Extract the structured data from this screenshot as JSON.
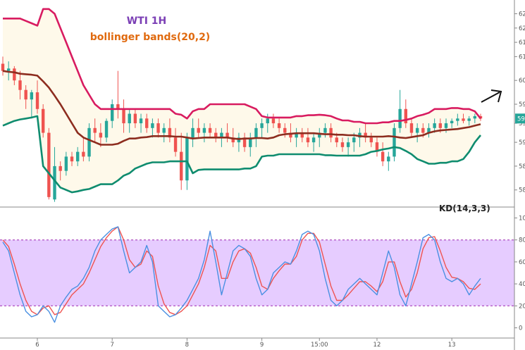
{
  "chart_data": [
    {
      "type": "candlestick",
      "title": "WTI 1H",
      "subtitle": "bollinger bands(20,2)",
      "price_ticks": [
        "62",
        "62",
        "61",
        "61",
        "60",
        "59",
        "59",
        "59",
        "58",
        "58"
      ],
      "price_tick_values": [
        62.1,
        61.8,
        61.5,
        61.2,
        60.7,
        60.2,
        59.8,
        59.4,
        58.9,
        58.4
      ],
      "price_label": "59",
      "ylim": [
        58.1,
        62.3
      ],
      "x_ticks": [
        "6",
        "7",
        "8",
        "9",
        "15:00",
        "12",
        "13"
      ],
      "x_tick_positions": [
        6,
        19,
        32,
        45,
        55,
        65,
        78
      ],
      "x_count": 84,
      "colors": {
        "up": "#26a69a",
        "down": "#ef5350",
        "upper_band": "#d81b60",
        "middle_band": "#8d2d1f",
        "lower_band": "#0f8c6f",
        "band_fill": "#fef9ea",
        "title1": "#7b3fb5",
        "title2": "#e06a0f"
      },
      "arrow": "up-right",
      "upper_band": [
        62.0,
        62.0,
        62.0,
        62.0,
        61.95,
        61.9,
        61.85,
        62.2,
        62.2,
        62.1,
        61.8,
        61.5,
        61.2,
        60.9,
        60.6,
        60.4,
        60.2,
        60.1,
        60.1,
        60.1,
        60.1,
        60.1,
        60.1,
        60.1,
        60.1,
        60.1,
        60.1,
        60.1,
        60.1,
        60.1,
        60.0,
        59.98,
        59.9,
        60.05,
        60.1,
        60.1,
        60.2,
        60.2,
        60.2,
        60.2,
        60.2,
        60.2,
        60.2,
        60.15,
        60.1,
        59.95,
        59.92,
        59.92,
        59.92,
        59.92,
        59.92,
        59.95,
        59.95,
        59.97,
        59.97,
        59.98,
        59.97,
        59.95,
        59.9,
        59.86,
        59.86,
        59.83,
        59.83,
        59.8,
        59.8,
        59.8,
        59.82,
        59.82,
        59.85,
        59.85,
        59.87,
        59.9,
        59.95,
        59.98,
        60.02,
        60.1,
        60.1,
        60.1,
        60.12,
        60.12,
        60.1,
        60.1,
        60.05,
        59.9
      ],
      "middle_band": [
        60.9,
        60.88,
        60.87,
        60.84,
        60.83,
        60.82,
        60.8,
        60.68,
        60.55,
        60.38,
        60.2,
        60.0,
        59.8,
        59.6,
        59.5,
        59.45,
        59.4,
        59.35,
        59.35,
        59.35,
        59.37,
        59.43,
        59.48,
        59.48,
        59.5,
        59.51,
        59.53,
        59.53,
        59.53,
        59.53,
        59.52,
        59.52,
        59.5,
        59.48,
        59.49,
        59.5,
        59.5,
        59.5,
        59.5,
        59.5,
        59.48,
        59.47,
        59.48,
        59.48,
        59.49,
        59.49,
        59.48,
        59.5,
        59.55,
        59.57,
        59.58,
        59.59,
        59.59,
        59.59,
        59.59,
        59.58,
        59.57,
        59.57,
        59.56,
        59.56,
        59.55,
        59.55,
        59.53,
        59.52,
        59.52,
        59.52,
        59.52,
        59.53,
        59.52,
        59.5,
        59.49,
        59.51,
        59.53,
        59.55,
        59.6,
        59.63,
        59.65,
        59.66,
        59.67,
        59.68,
        59.7,
        59.72,
        59.75,
        59.78
      ],
      "lower_band": [
        59.75,
        59.8,
        59.85,
        59.88,
        59.9,
        59.92,
        59.95,
        58.9,
        58.75,
        58.6,
        58.45,
        58.4,
        58.35,
        58.37,
        58.4,
        58.42,
        58.47,
        58.52,
        58.52,
        58.52,
        58.6,
        58.7,
        58.75,
        58.85,
        58.9,
        58.95,
        58.98,
        58.98,
        58.98,
        59.0,
        59.0,
        59.0,
        59.0,
        58.75,
        58.82,
        58.83,
        58.83,
        58.83,
        58.83,
        58.83,
        58.83,
        58.83,
        58.85,
        58.85,
        58.9,
        59.1,
        59.12,
        59.12,
        59.15,
        59.15,
        59.15,
        59.15,
        59.15,
        59.15,
        59.15,
        59.15,
        59.13,
        59.13,
        59.12,
        59.12,
        59.12,
        59.12,
        59.12,
        59.15,
        59.2,
        59.22,
        59.25,
        59.27,
        59.3,
        59.28,
        59.22,
        59.15,
        59.05,
        59.0,
        58.95,
        58.95,
        58.97,
        58.97,
        59.0,
        59.0,
        59.05,
        59.2,
        59.4,
        59.55
      ],
      "ohlc": [
        [
          61.05,
          61.2,
          60.8,
          60.9
        ],
        [
          60.9,
          61.1,
          60.7,
          60.95
        ],
        [
          60.95,
          61.0,
          60.6,
          60.7
        ],
        [
          60.7,
          60.9,
          60.3,
          60.5
        ],
        [
          60.5,
          60.6,
          60.1,
          60.3
        ],
        [
          60.3,
          60.5,
          59.9,
          60.45
        ],
        [
          60.45,
          60.7,
          60.0,
          60.1
        ],
        [
          60.1,
          60.2,
          59.5,
          59.6
        ],
        [
          59.6,
          59.7,
          58.2,
          58.25
        ],
        [
          58.2,
          59.3,
          58.15,
          58.9
        ],
        [
          58.9,
          59.0,
          58.6,
          58.8
        ],
        [
          58.8,
          59.2,
          58.7,
          59.1
        ],
        [
          59.1,
          59.2,
          58.9,
          59.0
        ],
        [
          59.0,
          59.3,
          58.9,
          59.2
        ],
        [
          59.2,
          59.5,
          59.0,
          59.1
        ],
        [
          59.1,
          59.8,
          59.0,
          59.7
        ],
        [
          59.7,
          59.9,
          59.4,
          59.6
        ],
        [
          59.6,
          59.8,
          59.3,
          59.5
        ],
        [
          59.5,
          59.9,
          59.4,
          59.85
        ],
        [
          59.85,
          60.3,
          59.7,
          60.2
        ],
        [
          60.2,
          60.9,
          59.9,
          60.1
        ],
        [
          60.1,
          60.3,
          59.6,
          59.8
        ],
        [
          59.8,
          60.1,
          59.6,
          60.0
        ],
        [
          60.0,
          60.1,
          59.7,
          59.8
        ],
        [
          59.8,
          60.0,
          59.6,
          59.9
        ],
        [
          59.9,
          60.0,
          59.6,
          59.7
        ],
        [
          59.7,
          59.9,
          59.5,
          59.8
        ],
        [
          59.8,
          59.9,
          59.5,
          59.6
        ],
        [
          59.6,
          59.8,
          59.4,
          59.7
        ],
        [
          59.7,
          59.9,
          59.4,
          59.5
        ],
        [
          59.5,
          59.7,
          59.1,
          59.2
        ],
        [
          59.2,
          59.6,
          58.4,
          58.6
        ],
        [
          58.6,
          59.6,
          58.4,
          59.5
        ],
        [
          59.5,
          59.9,
          59.3,
          59.7
        ],
        [
          59.7,
          59.9,
          59.5,
          59.6
        ],
        [
          59.6,
          59.8,
          59.4,
          59.7
        ],
        [
          59.7,
          59.8,
          59.5,
          59.6
        ],
        [
          59.6,
          59.7,
          59.4,
          59.5
        ],
        [
          59.5,
          59.7,
          59.3,
          59.6
        ],
        [
          59.6,
          59.8,
          59.4,
          59.5
        ],
        [
          59.5,
          59.7,
          59.3,
          59.4
        ],
        [
          59.4,
          59.6,
          59.2,
          59.5
        ],
        [
          59.5,
          59.6,
          59.2,
          59.3
        ],
        [
          59.3,
          59.6,
          59.1,
          59.5
        ],
        [
          59.5,
          59.8,
          59.3,
          59.7
        ],
        [
          59.7,
          59.9,
          59.5,
          59.8
        ],
        [
          59.8,
          60.0,
          59.6,
          59.9
        ],
        [
          59.9,
          60.0,
          59.7,
          59.8
        ],
        [
          59.8,
          59.9,
          59.6,
          59.7
        ],
        [
          59.7,
          59.8,
          59.5,
          59.6
        ],
        [
          59.6,
          59.8,
          59.4,
          59.5
        ],
        [
          59.5,
          59.7,
          59.3,
          59.6
        ],
        [
          59.6,
          59.7,
          59.4,
          59.5
        ],
        [
          59.5,
          59.7,
          59.3,
          59.4
        ],
        [
          59.4,
          59.6,
          59.2,
          59.5
        ],
        [
          59.5,
          59.7,
          59.3,
          59.6
        ],
        [
          59.6,
          59.8,
          59.5,
          59.7
        ],
        [
          59.7,
          59.8,
          59.4,
          59.5
        ],
        [
          59.5,
          59.6,
          59.3,
          59.4
        ],
        [
          59.4,
          59.5,
          59.2,
          59.3
        ],
        [
          59.3,
          59.5,
          59.1,
          59.4
        ],
        [
          59.4,
          59.6,
          59.2,
          59.5
        ],
        [
          59.5,
          59.7,
          59.3,
          59.6
        ],
        [
          59.6,
          59.8,
          59.4,
          59.5
        ],
        [
          59.5,
          59.6,
          59.3,
          59.4
        ],
        [
          59.4,
          59.5,
          59.1,
          59.2
        ],
        [
          59.2,
          59.4,
          58.9,
          59.0
        ],
        [
          59.0,
          59.2,
          58.8,
          59.1
        ],
        [
          59.1,
          59.8,
          59.0,
          59.7
        ],
        [
          59.7,
          60.5,
          59.6,
          60.1
        ],
        [
          60.1,
          60.3,
          59.7,
          59.8
        ],
        [
          59.8,
          59.9,
          59.5,
          59.6
        ],
        [
          59.6,
          59.8,
          59.4,
          59.7
        ],
        [
          59.7,
          59.8,
          59.5,
          59.6
        ],
        [
          59.6,
          59.8,
          59.5,
          59.7
        ],
        [
          59.7,
          59.9,
          59.6,
          59.8
        ],
        [
          59.8,
          59.9,
          59.6,
          59.7
        ],
        [
          59.7,
          59.9,
          59.6,
          59.8
        ],
        [
          59.8,
          59.9,
          59.7,
          59.85
        ],
        [
          59.85,
          60.0,
          59.75,
          59.9
        ],
        [
          59.9,
          60.0,
          59.8,
          59.85
        ],
        [
          59.85,
          59.95,
          59.75,
          59.9
        ],
        [
          59.9,
          60.0,
          59.8,
          59.95
        ],
        [
          59.95,
          60.0,
          59.85,
          59.9
        ]
      ]
    },
    {
      "type": "line",
      "title": "KD(14,3,3)",
      "ylim": [
        -8,
        108
      ],
      "y_ticks": [
        100,
        80,
        60,
        40,
        20,
        0
      ],
      "band": [
        20,
        80
      ],
      "colors": {
        "k": "#4a90e2",
        "d": "#ef5350",
        "band_fill": "#e6ccff",
        "band_line": "#9c27b0"
      },
      "series": [
        {
          "values": [
            78,
            70,
            50,
            30,
            15,
            10,
            12,
            20,
            15,
            5,
            20,
            28,
            35,
            38,
            45,
            55,
            70,
            80,
            85,
            90,
            92,
            70,
            50,
            55,
            60,
            75,
            60,
            20,
            15,
            10,
            12,
            18,
            25,
            35,
            45,
            62,
            88,
            60,
            30,
            50,
            70,
            75,
            72,
            65,
            45,
            30,
            35,
            50,
            55,
            60,
            58,
            70,
            85,
            88,
            85,
            70,
            45,
            25,
            20,
            25,
            35,
            40,
            45,
            40,
            35,
            30,
            50,
            70,
            55,
            30,
            20,
            40,
            60,
            82,
            85,
            80,
            60,
            45,
            42,
            45,
            40,
            30,
            38,
            45
          ]
        },
        {
          "values": [
            80,
            74,
            58,
            40,
            25,
            15,
            12,
            18,
            20,
            12,
            14,
            22,
            30,
            35,
            40,
            50,
            62,
            74,
            82,
            88,
            92,
            80,
            62,
            55,
            58,
            70,
            65,
            38,
            22,
            14,
            12,
            15,
            20,
            30,
            40,
            55,
            75,
            70,
            45,
            45,
            60,
            70,
            72,
            68,
            55,
            38,
            35,
            45,
            52,
            58,
            58,
            65,
            80,
            86,
            86,
            78,
            58,
            38,
            25,
            25,
            30,
            36,
            42,
            42,
            38,
            33,
            42,
            60,
            60,
            42,
            28,
            35,
            50,
            72,
            82,
            83,
            70,
            55,
            46,
            45,
            42,
            36,
            35,
            40
          ]
        }
      ]
    }
  ]
}
